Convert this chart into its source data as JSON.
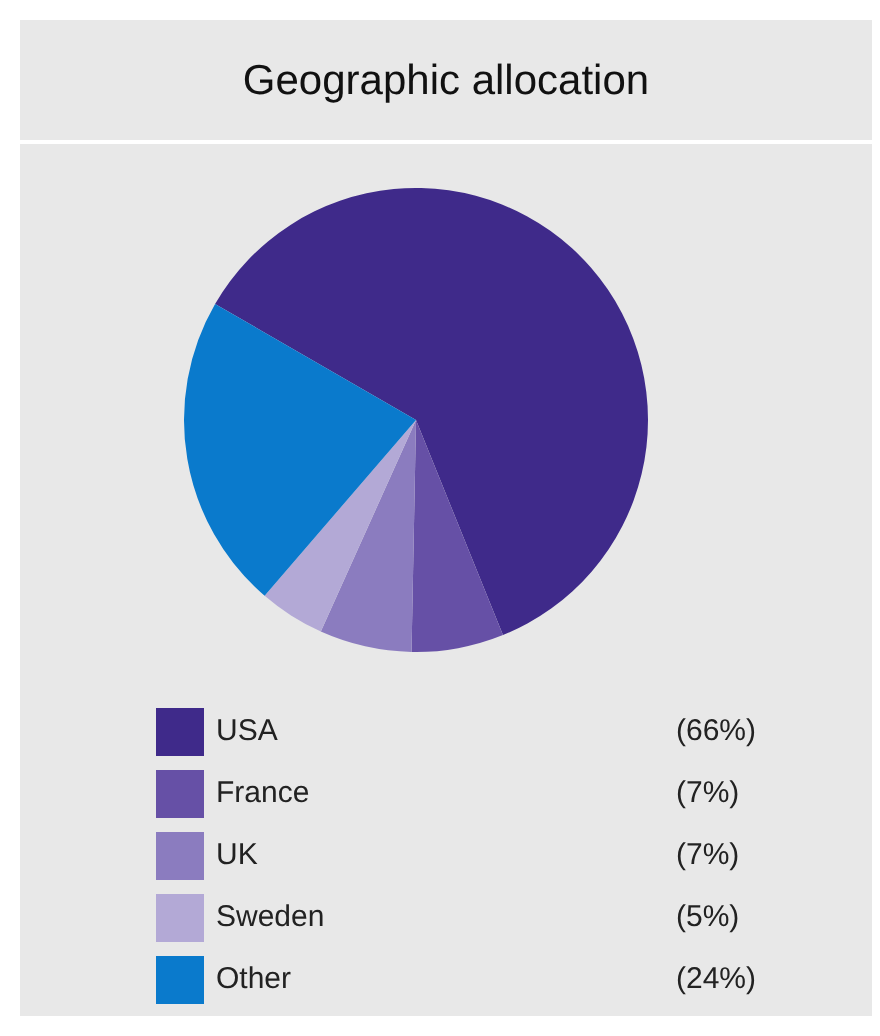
{
  "chart_data": {
    "type": "pie",
    "title": "Geographic allocation",
    "categories": [
      "USA",
      "France",
      "UK",
      "Sweden",
      "Other"
    ],
    "values": [
      66,
      7,
      7,
      5,
      24
    ],
    "value_labels": [
      "(66%)",
      "(7%)",
      "(7%)",
      "(5%)",
      "(24%)"
    ],
    "colors": [
      "#3f2a8a",
      "#6650a6",
      "#8b7cbf",
      "#b3a9d6",
      "#0a7acc"
    ],
    "legend": "bottom"
  }
}
